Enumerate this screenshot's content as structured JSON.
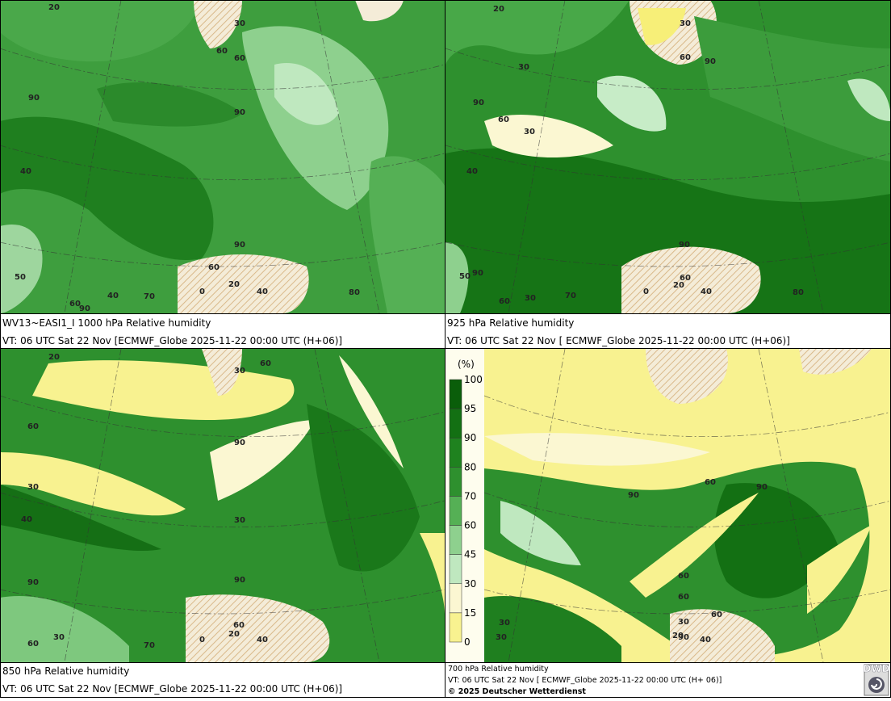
{
  "panels": [
    {
      "caption": "WV13~EASI1_I 1000 hPa Relative humidity",
      "valid_time": "VT: 06 UTC Sat  22 Nov [ECMWF_Globe 2025-11-22 00:00 UTC  (H+06)]",
      "contour_labels": [
        "20",
        "30",
        "60",
        "60",
        "90",
        "90",
        "40",
        "90",
        "60",
        "50",
        "40",
        "70",
        "60",
        "90",
        "0",
        "20",
        "40",
        "80"
      ]
    },
    {
      "caption": "925 hPa Relative humidity",
      "valid_time": "VT: 06 UTC Sat  22 Nov [ ECMWF_Globe 2025-11-22 00:00 UTC  (H+06)]",
      "contour_labels": [
        "20",
        "30",
        "60",
        "90",
        "30",
        "90",
        "60",
        "30",
        "40",
        "90",
        "60",
        "50",
        "90",
        "60",
        "30",
        "70",
        "0",
        "20",
        "40",
        "80"
      ]
    },
    {
      "caption": "850 hPa  Relative humidity",
      "valid_time": "VT: 06 UTC Sat  22 Nov [ECMWF_Globe 2025-11-22 00:00 UTC  (H+06)]",
      "contour_labels": [
        "20",
        "30",
        "60",
        "60",
        "90",
        "30",
        "40",
        "30",
        "90",
        "90",
        "60",
        "60",
        "30",
        "70",
        "0",
        "20",
        "40"
      ]
    },
    {
      "caption": "700 hPa Relative humidity",
      "valid_time": "VT: 06 UTC Sat  22 Nov [ ECMWF_Globe 2025-11-22 00:00 UTC  (H+ 06)]",
      "copyright": "© 2025 Deutscher Wetterdienst",
      "contour_labels": [
        "30",
        "60",
        "90",
        "60",
        "90",
        "60",
        "30",
        "90",
        "60",
        "30",
        "20",
        "40"
      ]
    }
  ],
  "legend": {
    "unit": "(%)",
    "levels": [
      "100",
      "95",
      "90",
      "80",
      "70",
      "60",
      "45",
      "30",
      "15",
      "0"
    ]
  },
  "logo": "DWD"
}
